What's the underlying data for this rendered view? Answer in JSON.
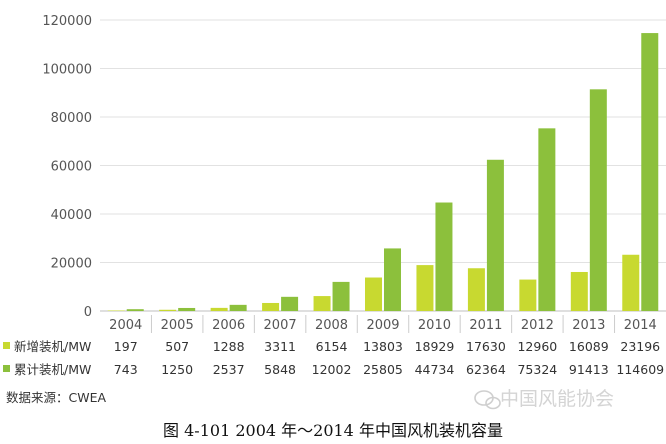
{
  "chart_data": {
    "type": "bar",
    "categories": [
      "2004",
      "2005",
      "2006",
      "2007",
      "2008",
      "2009",
      "2010",
      "2011",
      "2012",
      "2013",
      "2014"
    ],
    "series": [
      {
        "name": "新增装机/MW",
        "color": "#c8d930",
        "values": [
          197,
          507,
          1288,
          3311,
          6154,
          13803,
          18929,
          17630,
          12960,
          16089,
          23196
        ],
        "labels": [
          "197",
          "507",
          "1288",
          "3311",
          "6154",
          "13803",
          "18929",
          "17630",
          "12960",
          "16089",
          "23196"
        ]
      },
      {
        "name": "累计装机/MW",
        "color": "#8cc03c",
        "values": [
          743,
          1250,
          2537,
          5848,
          12002,
          25805,
          44734,
          62364,
          75324,
          91413,
          114609
        ],
        "labels": [
          "743",
          "1250",
          "2537",
          "5848",
          "12002",
          "25805",
          "44734",
          "62364",
          "75324",
          "91413",
          "114609"
        ]
      }
    ],
    "yticks": [
      0,
      20000,
      40000,
      60000,
      80000,
      100000,
      120000
    ],
    "ylim": [
      0,
      120000
    ],
    "title": "",
    "xlabel": "",
    "ylabel": ""
  },
  "source": "数据来源：CWEA",
  "watermark": "中国风能协会",
  "caption": "图 4-101  2004 年～2014 年中国风机装机容量"
}
